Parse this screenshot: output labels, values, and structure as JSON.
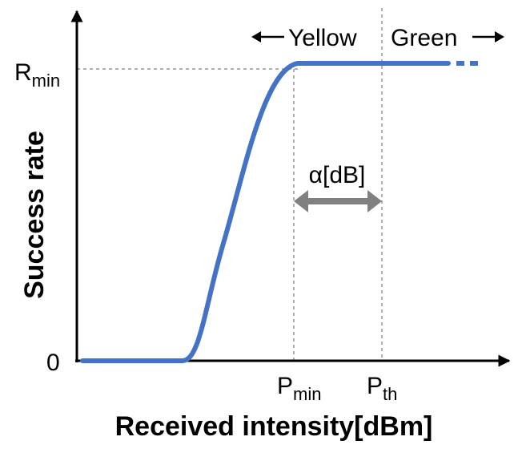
{
  "axes": {
    "x_title": "Received intensity[dBm]",
    "y_title": "Success rate"
  },
  "y_labels": {
    "zero": "0",
    "rmin_main": "R",
    "rmin_sub": "min"
  },
  "x_labels": {
    "pmin_main": "P",
    "pmin_sub": "min",
    "pth_main": "P",
    "pth_sub": "th"
  },
  "regions": {
    "yellow": "Yellow",
    "green": "Green"
  },
  "margin_label": "α[dB]",
  "colors": {
    "curve": "#4472C4",
    "margin_arrow": "#808080",
    "axis": "#000000",
    "guide": "#808080"
  }
}
